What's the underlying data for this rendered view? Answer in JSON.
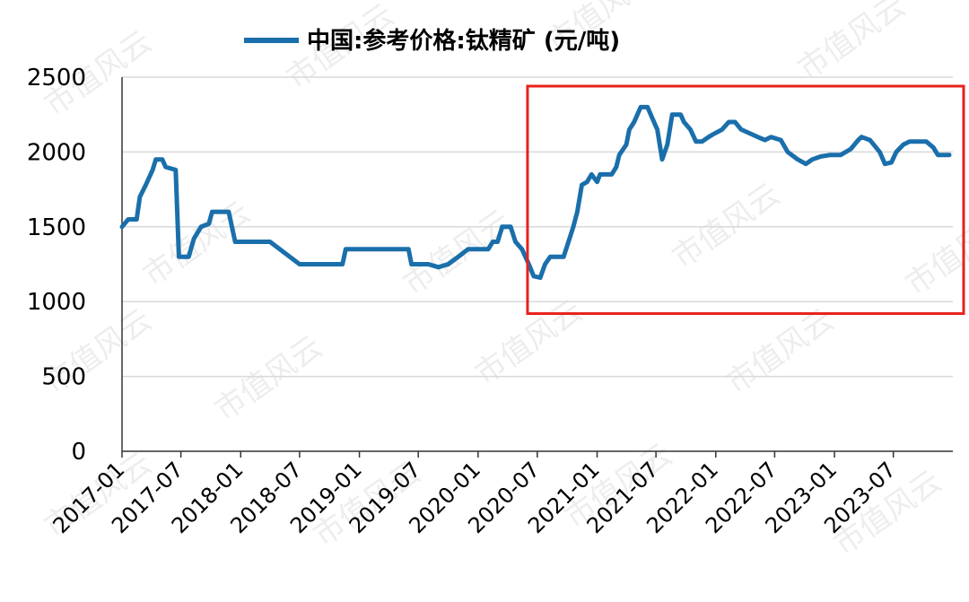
{
  "chart_data": {
    "type": "line",
    "title": "",
    "xlabel": "",
    "ylabel": "",
    "ylim": [
      0,
      2500
    ],
    "yticks": [
      "0",
      "500",
      "1000",
      "1500",
      "2000",
      "2500"
    ],
    "xticks": [
      "2017-01",
      "2017-07",
      "2018-01",
      "2018-07",
      "2019-01",
      "2019-07",
      "2020-01",
      "2020-07",
      "2021-01",
      "2021-07",
      "2022-01",
      "2022-07",
      "2023-01",
      "2023-07"
    ],
    "grid": "horizontal",
    "legend_position": "top",
    "series": [
      {
        "name": "中国:参考价格:钛精矿 (元/吨)",
        "color": "#1a6fab",
        "points": [
          [
            "2017-01-01",
            1500
          ],
          [
            "2017-01-20",
            1550
          ],
          [
            "2017-02-15",
            1550
          ],
          [
            "2017-02-25",
            1700
          ],
          [
            "2017-03-15",
            1780
          ],
          [
            "2017-04-05",
            1880
          ],
          [
            "2017-04-15",
            1950
          ],
          [
            "2017-05-05",
            1950
          ],
          [
            "2017-05-15",
            1900
          ],
          [
            "2017-06-15",
            1880
          ],
          [
            "2017-06-25",
            1300
          ],
          [
            "2017-07-25",
            1300
          ],
          [
            "2017-08-10",
            1420
          ],
          [
            "2017-09-01",
            1500
          ],
          [
            "2017-09-25",
            1520
          ],
          [
            "2017-10-05",
            1600
          ],
          [
            "2017-11-25",
            1600
          ],
          [
            "2017-12-05",
            1500
          ],
          [
            "2017-12-15",
            1400
          ],
          [
            "2018-04-01",
            1400
          ],
          [
            "2018-05-01",
            1350
          ],
          [
            "2018-06-01",
            1300
          ],
          [
            "2018-07-01",
            1250
          ],
          [
            "2018-11-10",
            1250
          ],
          [
            "2018-11-20",
            1350
          ],
          [
            "2019-06-01",
            1350
          ],
          [
            "2019-06-10",
            1250
          ],
          [
            "2019-08-01",
            1250
          ],
          [
            "2019-09-01",
            1230
          ],
          [
            "2019-10-01",
            1250
          ],
          [
            "2019-11-01",
            1300
          ],
          [
            "2019-12-01",
            1350
          ],
          [
            "2020-02-01",
            1350
          ],
          [
            "2020-02-15",
            1400
          ],
          [
            "2020-03-01",
            1400
          ],
          [
            "2020-03-15",
            1500
          ],
          [
            "2020-04-10",
            1500
          ],
          [
            "2020-04-25",
            1400
          ],
          [
            "2020-05-15",
            1350
          ],
          [
            "2020-06-05",
            1250
          ],
          [
            "2020-06-20",
            1170
          ],
          [
            "2020-07-10",
            1160
          ],
          [
            "2020-07-25",
            1250
          ],
          [
            "2020-08-10",
            1300
          ],
          [
            "2020-09-20",
            1300
          ],
          [
            "2020-10-05",
            1400
          ],
          [
            "2020-10-20",
            1500
          ],
          [
            "2020-11-01",
            1600
          ],
          [
            "2020-11-15",
            1780
          ],
          [
            "2020-12-01",
            1800
          ],
          [
            "2020-12-15",
            1850
          ],
          [
            "2021-01-01",
            1800
          ],
          [
            "2021-01-10",
            1850
          ],
          [
            "2021-02-15",
            1850
          ],
          [
            "2021-03-01",
            1900
          ],
          [
            "2021-03-10",
            1980
          ],
          [
            "2021-04-01",
            2050
          ],
          [
            "2021-04-10",
            2150
          ],
          [
            "2021-04-25",
            2200
          ],
          [
            "2021-05-05",
            2250
          ],
          [
            "2021-05-15",
            2300
          ],
          [
            "2021-06-05",
            2300
          ],
          [
            "2021-06-25",
            2200
          ],
          [
            "2021-07-05",
            2150
          ],
          [
            "2021-07-20",
            1950
          ],
          [
            "2021-08-05",
            2050
          ],
          [
            "2021-08-20",
            2250
          ],
          [
            "2021-09-15",
            2250
          ],
          [
            "2021-09-25",
            2200
          ],
          [
            "2021-10-15",
            2150
          ],
          [
            "2021-11-01",
            2070
          ],
          [
            "2021-11-20",
            2070
          ],
          [
            "2021-12-10",
            2100
          ],
          [
            "2021-12-25",
            2120
          ],
          [
            "2022-01-20",
            2150
          ],
          [
            "2022-02-10",
            2200
          ],
          [
            "2022-03-01",
            2200
          ],
          [
            "2022-03-20",
            2150
          ],
          [
            "2022-04-20",
            2120
          ],
          [
            "2022-05-10",
            2100
          ],
          [
            "2022-06-01",
            2080
          ],
          [
            "2022-06-20",
            2100
          ],
          [
            "2022-07-20",
            2080
          ],
          [
            "2022-08-10",
            2000
          ],
          [
            "2022-09-10",
            1950
          ],
          [
            "2022-10-05",
            1920
          ],
          [
            "2022-10-25",
            1950
          ],
          [
            "2022-11-20",
            1970
          ],
          [
            "2022-12-20",
            1980
          ],
          [
            "2023-01-20",
            1980
          ],
          [
            "2023-02-20",
            2020
          ],
          [
            "2023-03-15",
            2080
          ],
          [
            "2023-03-25",
            2100
          ],
          [
            "2023-04-20",
            2080
          ],
          [
            "2023-05-20",
            2000
          ],
          [
            "2023-06-05",
            1920
          ],
          [
            "2023-06-25",
            1930
          ],
          [
            "2023-07-10",
            2000
          ],
          [
            "2023-08-01",
            2050
          ],
          [
            "2023-08-20",
            2070
          ],
          [
            "2023-10-10",
            2070
          ],
          [
            "2023-11-01",
            2030
          ],
          [
            "2023-11-15",
            1980
          ],
          [
            "2023-12-20",
            1980
          ]
        ]
      }
    ],
    "annotations": [
      {
        "type": "highlight-box",
        "color": "#e8211c",
        "x_range": [
          "2020-06-01",
          "2023-12-31"
        ],
        "y_range": [
          920,
          2440
        ]
      }
    ],
    "watermark_text": "市值风云"
  }
}
